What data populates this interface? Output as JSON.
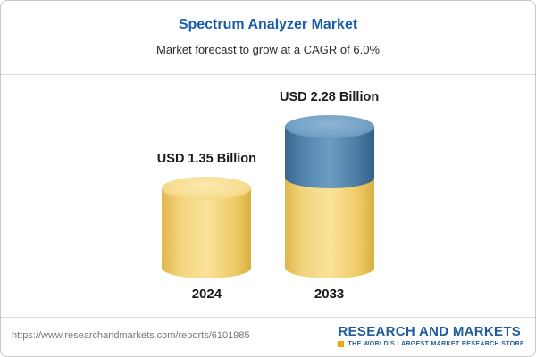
{
  "page": {
    "background": "#ffffff",
    "border_color": "#c9c9c9"
  },
  "header": {
    "title": "Spectrum Analyzer Market",
    "subtitle": "Market forecast to grow at a CAGR of 6.0%",
    "title_color": "#1a5dab"
  },
  "chart_data": {
    "type": "bar",
    "subtype": "3d-cylinder",
    "title": "Spectrum Analyzer Market",
    "subtitle": "Market forecast to grow at a CAGR of 6.0%",
    "unit": "USD Billion",
    "cagr": "6.0%",
    "categories": [
      "2024",
      "2033"
    ],
    "values": [
      1.35,
      2.28
    ],
    "value_labels": [
      "USD 1.35 Billion",
      "USD 2.28 Billion"
    ],
    "legend": false,
    "axes_visible": false,
    "colors": {
      "base": "#f2ce6a",
      "growth": "#4c7fa8"
    },
    "bars": [
      {
        "category": "2024",
        "total": 1.35,
        "label": "USD 1.35 Billion",
        "segments": [
          {
            "name": "value-2024",
            "value": 1.35,
            "color": "#f2ce6a"
          }
        ]
      },
      {
        "category": "2033",
        "total": 2.28,
        "label": "USD 2.28 Billion",
        "segments": [
          {
            "name": "base-2024-level",
            "value": 1.35,
            "color": "#f2ce6a"
          },
          {
            "name": "growth-to-2033",
            "value": 0.93,
            "color": "#4c7fa8"
          }
        ]
      }
    ]
  },
  "footer": {
    "url": "https://www.researchandmarkets.com/reports/6101985",
    "logo_title": "RESEARCH AND MARKETS",
    "logo_tagline": "THE WORLD'S LARGEST MARKET RESEARCH STORE",
    "logo_color": "#1e5c9e",
    "logo_accent_color": "#f0a500"
  }
}
